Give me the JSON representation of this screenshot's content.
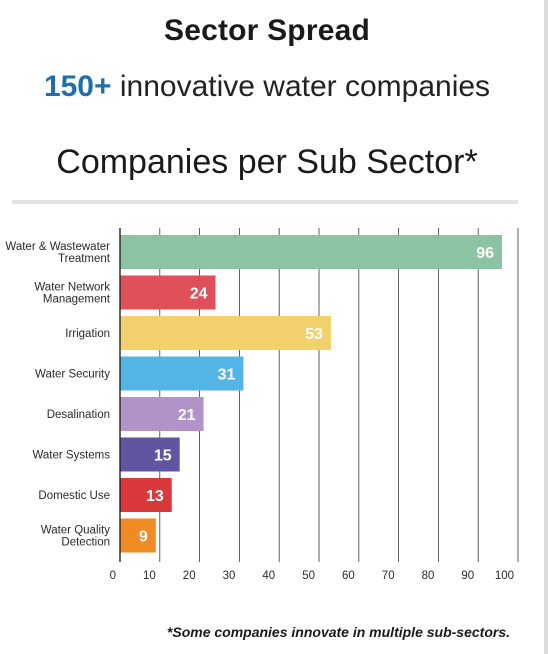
{
  "header": {
    "title": "Sector Spread",
    "headline_number": "150+",
    "headline_text": "innovative water companies",
    "subtitle": "Companies per Sub Sector*"
  },
  "chart_data": {
    "type": "bar",
    "orientation": "horizontal",
    "title": "Companies per Sub Sector*",
    "categories": [
      "Water & Wastewater Treatment",
      "Water Network Management",
      "Irrigation",
      "Water Security",
      "Desalination",
      "Water Systems",
      "Domestic Use",
      "Water Quality Detection"
    ],
    "category_lines": [
      [
        "Water & Wastewater",
        "Treatment"
      ],
      [
        "Water Network",
        "Management"
      ],
      [
        "Irrigation"
      ],
      [
        "Water Security"
      ],
      [
        "Desalination"
      ],
      [
        "Water Systems"
      ],
      [
        "Domestic Use"
      ],
      [
        "Water Quality",
        "Detection"
      ]
    ],
    "values": [
      96,
      24,
      53,
      31,
      21,
      15,
      13,
      9
    ],
    "colors": [
      "#8cc3a2",
      "#e0505a",
      "#f2d06b",
      "#52b5e6",
      "#b193c9",
      "#6155a2",
      "#d9393a",
      "#f08a24"
    ],
    "xlim": [
      0,
      100
    ],
    "xticks": [
      0,
      10,
      20,
      30,
      40,
      50,
      60,
      70,
      80,
      90,
      100
    ],
    "grid": true,
    "data_labels": true
  },
  "footnote": "*Some companies innovate in multiple sub-sectors."
}
